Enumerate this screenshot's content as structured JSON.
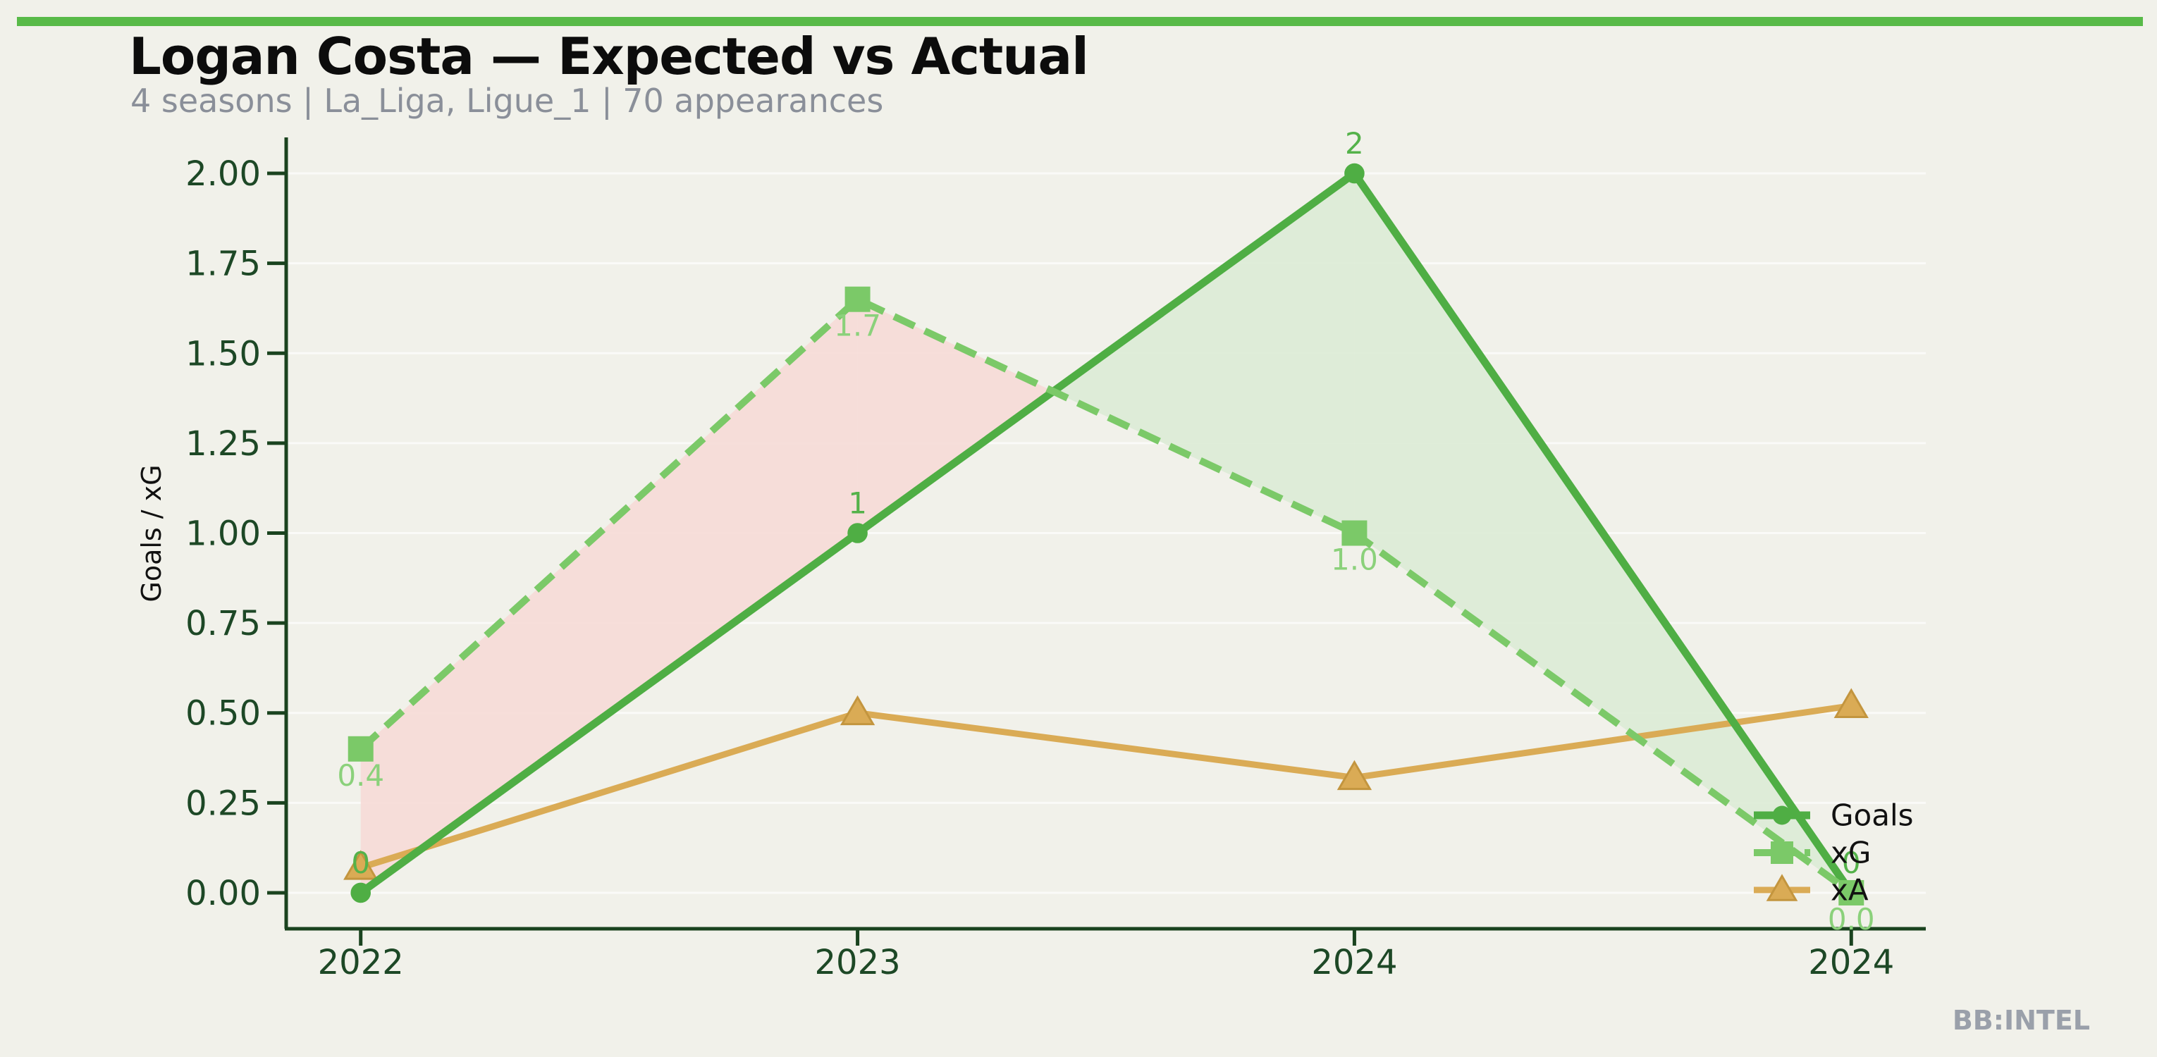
{
  "page": {
    "title": "Logan Costa — Expected vs Actual",
    "subtitle": "4 seasons | La_Liga, Ligue_1 | 70 appearances",
    "watermark": "BB:INTEL",
    "accent_bar_color": "#58ba48",
    "background_color": "#f1f1ea"
  },
  "chart_data": {
    "type": "line",
    "title": "Logan Costa — Expected vs Actual",
    "subtitle": "4 seasons | La_Liga, Ligue_1 | 70 appearances",
    "categories": [
      "2022",
      "2023",
      "2024",
      "2024"
    ],
    "xlabel": "",
    "ylabel": "Goals / xG",
    "ylim": [
      -0.1,
      2.1
    ],
    "yticks": {
      "values": [
        0,
        0.25,
        0.5,
        0.75,
        1.0,
        1.25,
        1.5,
        1.75,
        2.0
      ],
      "labels": [
        "0.00",
        "0.25",
        "0.50",
        "0.75",
        "1.00",
        "1.25",
        "1.50",
        "1.75",
        "2.00"
      ]
    },
    "grid": {
      "horizontal": true,
      "color": "rgba(255,255,255,0.65)"
    },
    "series": [
      {
        "name": "xA",
        "values": [
          0.07,
          0.5,
          0.32,
          0.52
        ],
        "color": "#daab55",
        "edge_color": "#c3953e",
        "marker": "triangle",
        "line_style": "solid",
        "line_width": 9,
        "point_labels": [],
        "label_color": "#daab55",
        "label_side": "none"
      },
      {
        "name": "Goals",
        "values": [
          0,
          1,
          2,
          0
        ],
        "color": "#4fae44",
        "edge_color": "#4fae44",
        "marker": "circle",
        "line_style": "solid",
        "line_width": 11,
        "point_labels": [
          "0",
          "1",
          "2",
          "0"
        ],
        "label_color": "#54b24a",
        "label_side": "above"
      },
      {
        "name": "xG",
        "values": [
          0.4,
          1.65,
          1.0,
          0.0
        ],
        "color": "#7bc968",
        "edge_color": "#7bc968",
        "marker": "square",
        "line_style": "dashed",
        "line_width": 10,
        "point_labels": [
          "0.4",
          "1.7",
          "1.0",
          "0.0"
        ],
        "label_color": "#8bd17b",
        "label_side": "below"
      }
    ],
    "fill_between": {
      "series": [
        "Goals",
        "xG"
      ],
      "positive_color": "#dcebd6",
      "negative_color": "#f6dbd7",
      "opacity": 0.92
    },
    "legend": {
      "frame": false,
      "position": "inside-lower-right",
      "entries": [
        "Goals",
        "xG",
        "xA"
      ]
    },
    "axis_color": "#1a431f",
    "tick_label_color": "#1d4826"
  }
}
